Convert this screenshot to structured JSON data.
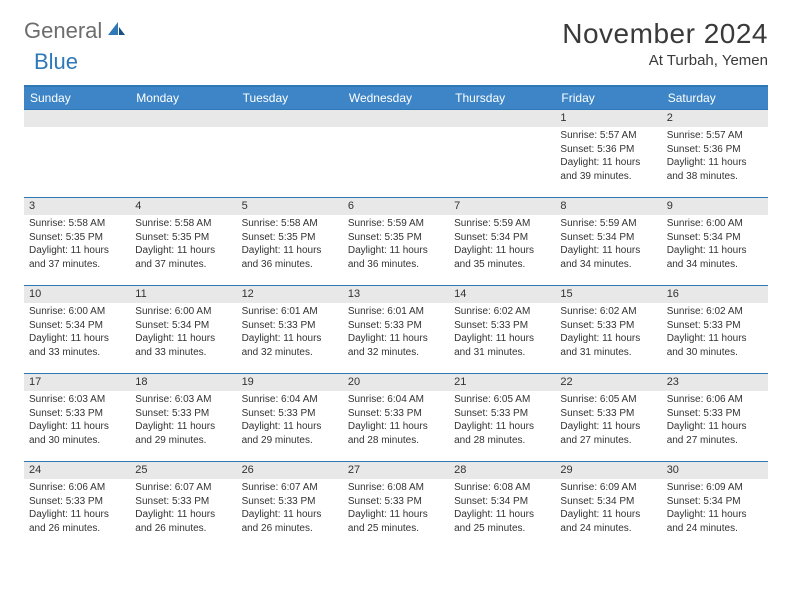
{
  "brand": {
    "part1": "General",
    "part2": "Blue"
  },
  "title": "November 2024",
  "location": "At Turbah, Yemen",
  "colors": {
    "header_bg": "#3d85c6",
    "border": "#2f78b7",
    "daynum_bg": "#e8e8e8",
    "text": "#333333",
    "title_text": "#3a3a3a",
    "logo_gray": "#6d6d6d",
    "logo_blue": "#2f78b7"
  },
  "weekdays": [
    "Sunday",
    "Monday",
    "Tuesday",
    "Wednesday",
    "Thursday",
    "Friday",
    "Saturday"
  ],
  "weeks": [
    [
      null,
      null,
      null,
      null,
      null,
      {
        "n": "1",
        "sr": "5:57 AM",
        "ss": "5:36 PM",
        "dl": "11 hours and 39 minutes."
      },
      {
        "n": "2",
        "sr": "5:57 AM",
        "ss": "5:36 PM",
        "dl": "11 hours and 38 minutes."
      }
    ],
    [
      {
        "n": "3",
        "sr": "5:58 AM",
        "ss": "5:35 PM",
        "dl": "11 hours and 37 minutes."
      },
      {
        "n": "4",
        "sr": "5:58 AM",
        "ss": "5:35 PM",
        "dl": "11 hours and 37 minutes."
      },
      {
        "n": "5",
        "sr": "5:58 AM",
        "ss": "5:35 PM",
        "dl": "11 hours and 36 minutes."
      },
      {
        "n": "6",
        "sr": "5:59 AM",
        "ss": "5:35 PM",
        "dl": "11 hours and 36 minutes."
      },
      {
        "n": "7",
        "sr": "5:59 AM",
        "ss": "5:34 PM",
        "dl": "11 hours and 35 minutes."
      },
      {
        "n": "8",
        "sr": "5:59 AM",
        "ss": "5:34 PM",
        "dl": "11 hours and 34 minutes."
      },
      {
        "n": "9",
        "sr": "6:00 AM",
        "ss": "5:34 PM",
        "dl": "11 hours and 34 minutes."
      }
    ],
    [
      {
        "n": "10",
        "sr": "6:00 AM",
        "ss": "5:34 PM",
        "dl": "11 hours and 33 minutes."
      },
      {
        "n": "11",
        "sr": "6:00 AM",
        "ss": "5:34 PM",
        "dl": "11 hours and 33 minutes."
      },
      {
        "n": "12",
        "sr": "6:01 AM",
        "ss": "5:33 PM",
        "dl": "11 hours and 32 minutes."
      },
      {
        "n": "13",
        "sr": "6:01 AM",
        "ss": "5:33 PM",
        "dl": "11 hours and 32 minutes."
      },
      {
        "n": "14",
        "sr": "6:02 AM",
        "ss": "5:33 PM",
        "dl": "11 hours and 31 minutes."
      },
      {
        "n": "15",
        "sr": "6:02 AM",
        "ss": "5:33 PM",
        "dl": "11 hours and 31 minutes."
      },
      {
        "n": "16",
        "sr": "6:02 AM",
        "ss": "5:33 PM",
        "dl": "11 hours and 30 minutes."
      }
    ],
    [
      {
        "n": "17",
        "sr": "6:03 AM",
        "ss": "5:33 PM",
        "dl": "11 hours and 30 minutes."
      },
      {
        "n": "18",
        "sr": "6:03 AM",
        "ss": "5:33 PM",
        "dl": "11 hours and 29 minutes."
      },
      {
        "n": "19",
        "sr": "6:04 AM",
        "ss": "5:33 PM",
        "dl": "11 hours and 29 minutes."
      },
      {
        "n": "20",
        "sr": "6:04 AM",
        "ss": "5:33 PM",
        "dl": "11 hours and 28 minutes."
      },
      {
        "n": "21",
        "sr": "6:05 AM",
        "ss": "5:33 PM",
        "dl": "11 hours and 28 minutes."
      },
      {
        "n": "22",
        "sr": "6:05 AM",
        "ss": "5:33 PM",
        "dl": "11 hours and 27 minutes."
      },
      {
        "n": "23",
        "sr": "6:06 AM",
        "ss": "5:33 PM",
        "dl": "11 hours and 27 minutes."
      }
    ],
    [
      {
        "n": "24",
        "sr": "6:06 AM",
        "ss": "5:33 PM",
        "dl": "11 hours and 26 minutes."
      },
      {
        "n": "25",
        "sr": "6:07 AM",
        "ss": "5:33 PM",
        "dl": "11 hours and 26 minutes."
      },
      {
        "n": "26",
        "sr": "6:07 AM",
        "ss": "5:33 PM",
        "dl": "11 hours and 26 minutes."
      },
      {
        "n": "27",
        "sr": "6:08 AM",
        "ss": "5:33 PM",
        "dl": "11 hours and 25 minutes."
      },
      {
        "n": "28",
        "sr": "6:08 AM",
        "ss": "5:34 PM",
        "dl": "11 hours and 25 minutes."
      },
      {
        "n": "29",
        "sr": "6:09 AM",
        "ss": "5:34 PM",
        "dl": "11 hours and 24 minutes."
      },
      {
        "n": "30",
        "sr": "6:09 AM",
        "ss": "5:34 PM",
        "dl": "11 hours and 24 minutes."
      }
    ]
  ],
  "labels": {
    "sunrise": "Sunrise: ",
    "sunset": "Sunset: ",
    "daylight": "Daylight: "
  }
}
